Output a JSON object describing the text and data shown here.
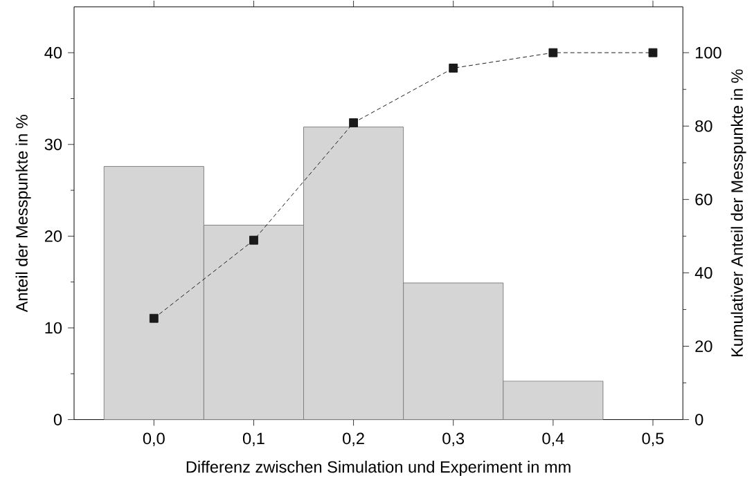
{
  "chart_data": {
    "type": "histogram",
    "xlabel": "Differenz zwischen Simulation und Experiment in mm",
    "ylabel": "Anteil der Messpunkte in %",
    "y2label": "Kumulativer Anteil der Messpunkte in %",
    "xlim": [
      -0.08,
      0.53
    ],
    "ylim": [
      0,
      45
    ],
    "y2lim": [
      0,
      112.5
    ],
    "xticks": [
      {
        "value": 0,
        "label": "0,0"
      },
      {
        "value": 0.1,
        "label": "0,1"
      },
      {
        "value": 0.2,
        "label": "0,2"
      },
      {
        "value": 0.3,
        "label": "0,3"
      },
      {
        "value": 0.4,
        "label": "0,4"
      },
      {
        "value": 0.5,
        "label": "0,5"
      }
    ],
    "yticks": [
      0,
      10,
      20,
      30,
      40
    ],
    "y2ticks": [
      0,
      20,
      40,
      60,
      80,
      100
    ],
    "grid": false,
    "series": [
      {
        "color": "#d5d5d5",
        "bins": [
          -0.05,
          0.05,
          0.15,
          0.25,
          0.35,
          0.45
        ],
        "values": [
          27.6,
          21.2,
          31.9,
          14.9,
          4.2
        ]
      },
      {
        "type": "line",
        "axis": "y2",
        "color": "#1a1a1a",
        "marker": "square",
        "line_style": "dashed",
        "x": [
          0,
          0.1,
          0.2,
          0.3,
          0.4,
          0.5
        ],
        "values": [
          27.6,
          48.9,
          80.9,
          95.8,
          100,
          100
        ]
      }
    ]
  }
}
